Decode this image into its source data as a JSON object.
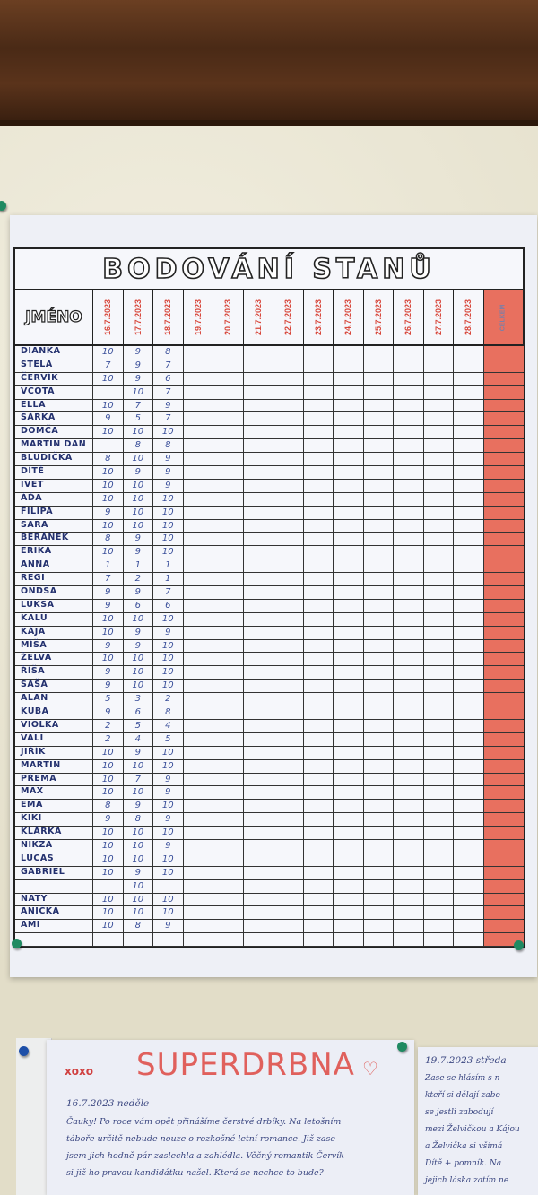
{
  "sheet": {
    "title": "BODOVÁNÍ STANŮ",
    "name_header": "JMÉNO",
    "dates": [
      "16.7.2023",
      "17.7.2023",
      "18.7.2023",
      "19.7.2023",
      "20.7.2023",
      "21.7.2023",
      "22.7.2023",
      "23.7.2023",
      "24.7.2023",
      "25.7.2023",
      "26.7.2023",
      "27.7.2023",
      "28.7.2023"
    ],
    "total_header": "CELKEM",
    "accent": "#e8705f",
    "rows": [
      {
        "name": "DIANKA",
        "scores": [
          "10",
          "9",
          "8"
        ]
      },
      {
        "name": "STELA",
        "scores": [
          "7",
          "9",
          "7"
        ]
      },
      {
        "name": "ČERVÍK",
        "scores": [
          "10",
          "9",
          "6"
        ]
      },
      {
        "name": "VČOTA",
        "scores": [
          "",
          "10",
          "7"
        ]
      },
      {
        "name": "ELLA",
        "scores": [
          "10",
          "7",
          "9"
        ]
      },
      {
        "name": "ŠÁRKA",
        "scores": [
          "9",
          "5",
          "7"
        ]
      },
      {
        "name": "DOMČA",
        "scores": [
          "10",
          "10",
          "10"
        ]
      },
      {
        "name": "MARTIN DAN",
        "scores": [
          "",
          "8",
          "8"
        ]
      },
      {
        "name": "BLUDIČKA",
        "scores": [
          "8",
          "10",
          "9"
        ]
      },
      {
        "name": "DÍTĚ",
        "scores": [
          "10",
          "9",
          "9"
        ]
      },
      {
        "name": "IVET",
        "scores": [
          "10",
          "10",
          "9"
        ]
      },
      {
        "name": "ÁĎA",
        "scores": [
          "10",
          "10",
          "10"
        ]
      },
      {
        "name": "FILIPA",
        "scores": [
          "9",
          "10",
          "10"
        ]
      },
      {
        "name": "SARA",
        "scores": [
          "10",
          "10",
          "10"
        ]
      },
      {
        "name": "BERÁNEK",
        "scores": [
          "8",
          "9",
          "10"
        ]
      },
      {
        "name": "ERIKA",
        "scores": [
          "10",
          "9",
          "10"
        ]
      },
      {
        "name": "ANNA",
        "scores": [
          "1",
          "1",
          "1"
        ]
      },
      {
        "name": "REGI",
        "scores": [
          "7",
          "2",
          "1"
        ]
      },
      {
        "name": "ONDŠA",
        "scores": [
          "9",
          "9",
          "7"
        ]
      },
      {
        "name": "LUKSA",
        "scores": [
          "9",
          "6",
          "6"
        ]
      },
      {
        "name": "KALU",
        "scores": [
          "10",
          "10",
          "10"
        ]
      },
      {
        "name": "KÁJA",
        "scores": [
          "10",
          "9",
          "9"
        ]
      },
      {
        "name": "MÍŠA",
        "scores": [
          "9",
          "9",
          "10"
        ]
      },
      {
        "name": "ŽELVA",
        "scores": [
          "10",
          "10",
          "10"
        ]
      },
      {
        "name": "ŘÍŠA",
        "scores": [
          "9",
          "10",
          "10"
        ]
      },
      {
        "name": "SAŠA",
        "scores": [
          "9",
          "10",
          "10"
        ]
      },
      {
        "name": "ALAN",
        "scores": [
          "5",
          "3",
          "2"
        ]
      },
      {
        "name": "KUBA",
        "scores": [
          "9",
          "6",
          "8"
        ]
      },
      {
        "name": "VIOLKA",
        "scores": [
          "2",
          "5",
          "4"
        ]
      },
      {
        "name": "VALI",
        "scores": [
          "2",
          "4",
          "5"
        ]
      },
      {
        "name": "JIŘÍK",
        "scores": [
          "10",
          "9",
          "10"
        ]
      },
      {
        "name": "MARTIN",
        "scores": [
          "10",
          "10",
          "10"
        ]
      },
      {
        "name": "PŘEMA",
        "scores": [
          "10",
          "7",
          "9"
        ]
      },
      {
        "name": "MAX",
        "scores": [
          "10",
          "10",
          "9"
        ]
      },
      {
        "name": "EMA",
        "scores": [
          "8",
          "9",
          "10"
        ]
      },
      {
        "name": "KIKI",
        "scores": [
          "9",
          "8",
          "9"
        ]
      },
      {
        "name": "KLÁRKA",
        "scores": [
          "10",
          "10",
          "10"
        ]
      },
      {
        "name": "NIKZA",
        "scores": [
          "10",
          "10",
          "9"
        ]
      },
      {
        "name": "LUCAS",
        "scores": [
          "10",
          "10",
          "10"
        ]
      },
      {
        "name": "GABRIEL",
        "scores": [
          "10",
          "9",
          "10"
        ]
      },
      {
        "name": "",
        "scores": [
          "",
          "10",
          ""
        ]
      },
      {
        "name": "NATY",
        "scores": [
          "10",
          "10",
          "10"
        ]
      },
      {
        "name": "ANIČKA",
        "scores": [
          "10",
          "10",
          "10"
        ]
      },
      {
        "name": "AMI",
        "scores": [
          "10",
          "8",
          "9"
        ]
      },
      {
        "name": "",
        "scores": [
          "",
          "",
          ""
        ]
      }
    ]
  },
  "note1": {
    "xoxo": "xoxo",
    "title": "SUPERDRBNA",
    "date": "16.7.2023 neděle",
    "lines": [
      "Čauky! Po roce vám opět přinášíme čerstvé drbíky. Na letošním",
      "táboře určitě nebude nouze o rozkošné letní romance. Již zase",
      "jsem jich hodně pár zaslechla a zahlédla. Věčný romantik Červík",
      "si již ho pravou kandidátku našel. Která se nechce to bude?"
    ]
  },
  "note2": {
    "date": "19.7.2023 středa",
    "lines": [
      "Zase se hlásím s n",
      "kteří si dělají zabo",
      "se jestli zabodují",
      "mezi Želvičkou a Kájou",
      "a Želvička si všímá",
      "Dítě + pomník. Na",
      "jejich láska zatím ne"
    ]
  }
}
